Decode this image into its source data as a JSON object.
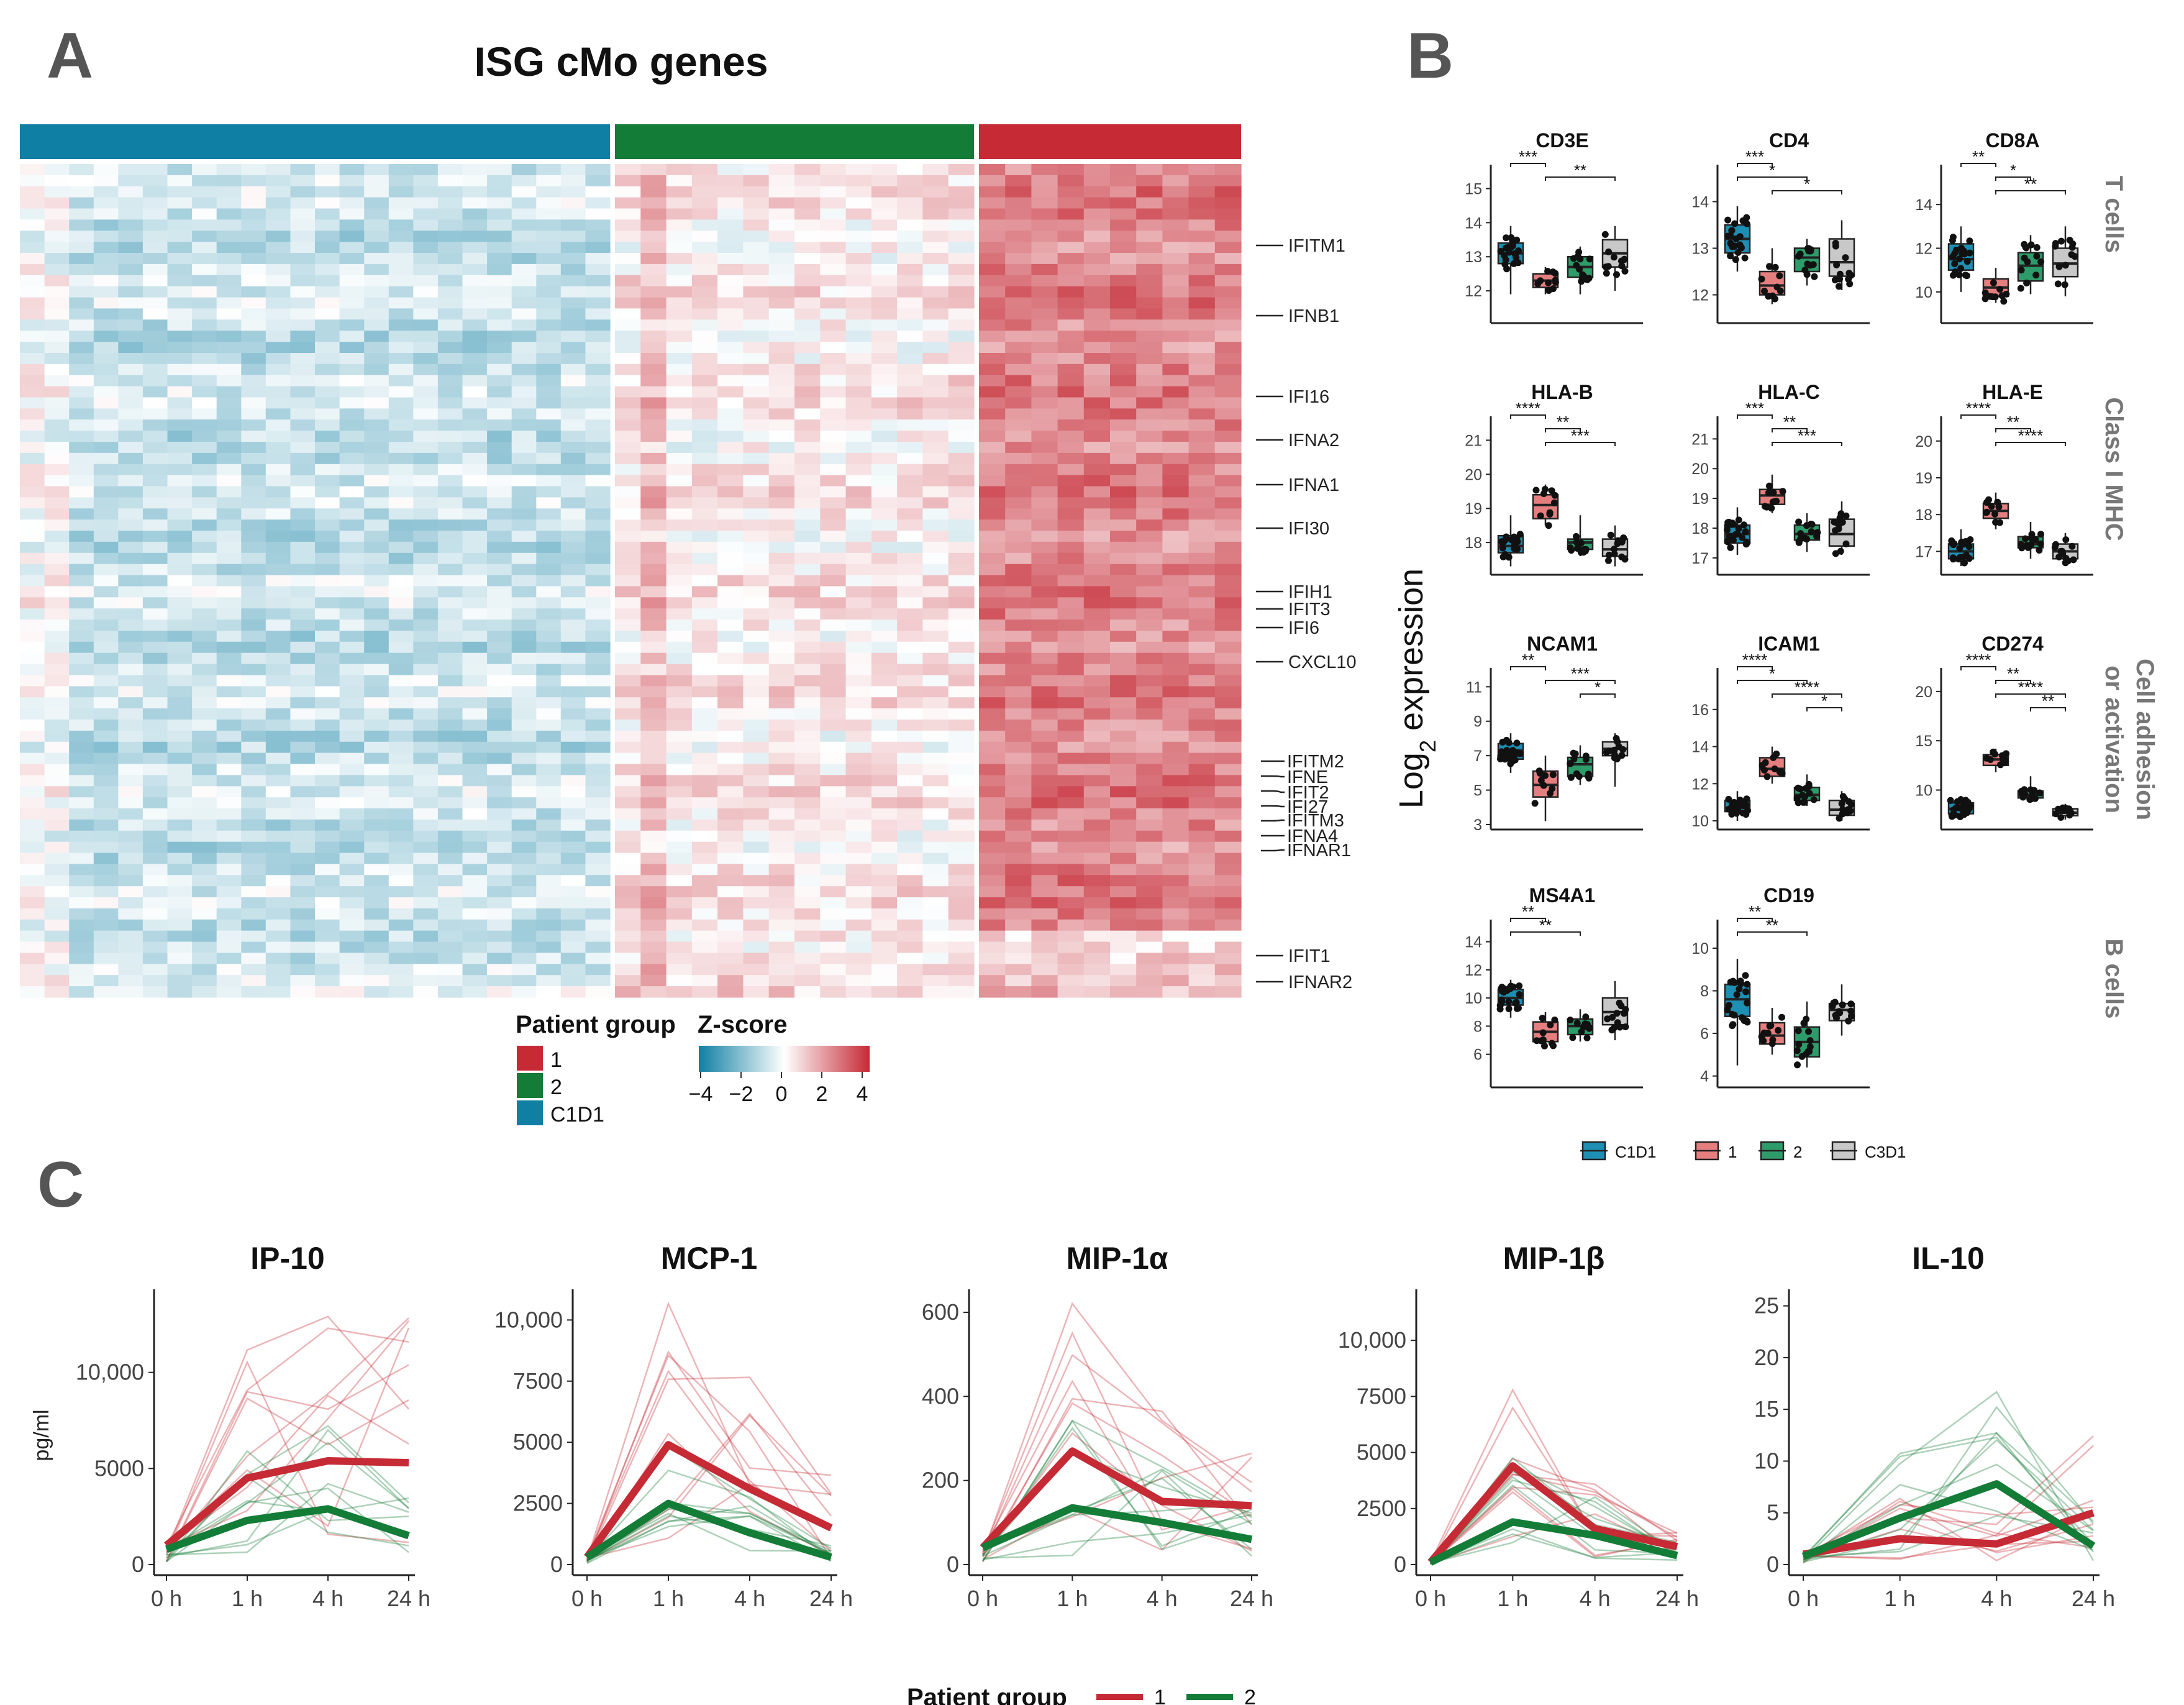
{
  "colors": {
    "c1d1": "#0f7fa3",
    "g1": "#c52a35",
    "g2": "#137c37",
    "c3d1": "#bdbdbd",
    "box_c1d1": "#1e8fb3",
    "box_g1": "#e57f7f",
    "box_g2": "#2e9c6a",
    "box_c3d1": "#c8c8c8"
  },
  "panel_a": {
    "letter": "A",
    "title": "ISG cMo genes",
    "gene_labels": [
      "IFITM1",
      "IFNB1",
      "IFI16",
      "IFNA2",
      "IFNA1",
      "IFI30",
      "IFIH1",
      "IFIT3",
      "IFI6",
      "CXCL10",
      "IFITM2",
      "IFNE",
      "IFIT2",
      "IFI27",
      "IFITM3",
      "IFNA4",
      "IFNAR1",
      "IFIT1",
      "IFNAR2"
    ],
    "legend_group_title": "Patient group",
    "legend_groups": [
      "1",
      "2",
      "C1D1"
    ],
    "legend_z_title": "Z-score",
    "z_ticks": [
      "−4",
      "−2",
      "0",
      "2",
      "4"
    ]
  },
  "panel_b": {
    "letter": "B",
    "y_axis_label": "Log",
    "y_axis_sub": "2",
    "y_axis_label_rest": " expression",
    "row_labels": [
      "T cells",
      "Class I MHC",
      "Cell adhesion",
      "or  activation",
      "B cells"
    ],
    "legend": [
      "C1D1",
      "1",
      "2",
      "C3D1"
    ]
  },
  "chart_data": [
    {
      "type": "box",
      "panel": "B",
      "title": "CD3E",
      "yticks": [
        12,
        13,
        14,
        15
      ],
      "ylim": [
        11.2,
        15.3
      ],
      "groups": [
        {
          "name": "C1D1",
          "q1": 12.8,
          "median": 13.1,
          "q3": 13.4,
          "min": 11.9,
          "max": 13.9
        },
        {
          "name": "1",
          "q1": 12.1,
          "median": 12.3,
          "q3": 12.5,
          "min": 11.9,
          "max": 12.7
        },
        {
          "name": "2",
          "q1": 12.4,
          "median": 12.7,
          "q3": 13.0,
          "min": 11.9,
          "max": 13.3
        },
        {
          "name": "C3D1",
          "q1": 12.7,
          "median": 13.1,
          "q3": 13.5,
          "min": 12.0,
          "max": 13.9
        }
      ],
      "brackets": [
        {
          "from": 0,
          "to": 1,
          "label": "***"
        },
        {
          "from": 1,
          "to": 3,
          "label": "**"
        }
      ]
    },
    {
      "type": "box",
      "panel": "B",
      "title": "CD4",
      "yticks": [
        12,
        13,
        14
      ],
      "ylim": [
        11.5,
        14.5
      ],
      "groups": [
        {
          "name": "C1D1",
          "q1": 12.9,
          "median": 13.2,
          "q3": 13.5,
          "min": 12.5,
          "max": 13.9
        },
        {
          "name": "1",
          "q1": 12.0,
          "median": 12.2,
          "q3": 12.5,
          "min": 11.8,
          "max": 13.0
        },
        {
          "name": "2",
          "q1": 12.5,
          "median": 12.8,
          "q3": 13.0,
          "min": 12.2,
          "max": 13.2
        },
        {
          "name": "C3D1",
          "q1": 12.4,
          "median": 12.7,
          "q3": 13.2,
          "min": 12.1,
          "max": 13.6
        }
      ],
      "brackets": [
        {
          "from": 0,
          "to": 1,
          "label": "***"
        },
        {
          "from": 0,
          "to": 2,
          "label": "*"
        },
        {
          "from": 1,
          "to": 3,
          "label": "*"
        }
      ]
    },
    {
      "type": "box",
      "panel": "B",
      "title": "CD8A",
      "yticks": [
        10,
        12,
        14
      ],
      "ylim": [
        8.8,
        15.2
      ],
      "groups": [
        {
          "name": "C1D1",
          "q1": 11.0,
          "median": 11.5,
          "q3": 12.2,
          "min": 10.0,
          "max": 13.0
        },
        {
          "name": "1",
          "q1": 9.8,
          "median": 10.2,
          "q3": 10.6,
          "min": 9.5,
          "max": 11.1
        },
        {
          "name": "2",
          "q1": 10.5,
          "median": 11.2,
          "q3": 11.8,
          "min": 9.9,
          "max": 12.6
        },
        {
          "name": "C3D1",
          "q1": 10.7,
          "median": 11.3,
          "q3": 12.0,
          "min": 9.8,
          "max": 13.0
        }
      ],
      "brackets": [
        {
          "from": 0,
          "to": 1,
          "label": "**"
        },
        {
          "from": 1,
          "to": 2,
          "label": "*"
        },
        {
          "from": 1,
          "to": 3,
          "label": "**"
        }
      ]
    },
    {
      "type": "box",
      "panel": "B",
      "title": "HLA-B",
      "yticks": [
        18,
        19,
        20,
        21
      ],
      "ylim": [
        17.2,
        21.3
      ],
      "groups": [
        {
          "name": "C1D1",
          "q1": 17.7,
          "median": 17.9,
          "q3": 18.2,
          "min": 17.3,
          "max": 18.8
        },
        {
          "name": "1",
          "q1": 18.7,
          "median": 19.1,
          "q3": 19.4,
          "min": 18.5,
          "max": 19.7
        },
        {
          "name": "2",
          "q1": 17.8,
          "median": 18.0,
          "q3": 18.1,
          "min": 17.6,
          "max": 18.8
        },
        {
          "name": "C3D1",
          "q1": 17.6,
          "median": 17.8,
          "q3": 18.1,
          "min": 17.3,
          "max": 18.5
        }
      ],
      "brackets": [
        {
          "from": 0,
          "to": 1,
          "label": "****"
        },
        {
          "from": 1,
          "to": 2,
          "label": "**"
        },
        {
          "from": 1,
          "to": 3,
          "label": "***"
        }
      ]
    },
    {
      "type": "box",
      "panel": "B",
      "title": "HLA-C",
      "yticks": [
        17,
        18,
        19,
        20,
        21
      ],
      "ylim": [
        16.6,
        21.3
      ],
      "groups": [
        {
          "name": "C1D1",
          "q1": 17.5,
          "median": 17.8,
          "q3": 18.1,
          "min": 17.1,
          "max": 18.7
        },
        {
          "name": "1",
          "q1": 18.8,
          "median": 19.1,
          "q3": 19.3,
          "min": 18.5,
          "max": 19.8
        },
        {
          "name": "2",
          "q1": 17.6,
          "median": 17.8,
          "q3": 18.1,
          "min": 17.2,
          "max": 18.5
        },
        {
          "name": "C3D1",
          "q1": 17.4,
          "median": 17.8,
          "q3": 18.3,
          "min": 17.1,
          "max": 18.9
        }
      ],
      "brackets": [
        {
          "from": 0,
          "to": 1,
          "label": "***"
        },
        {
          "from": 1,
          "to": 2,
          "label": "**"
        },
        {
          "from": 1,
          "to": 3,
          "label": "***"
        }
      ]
    },
    {
      "type": "box",
      "panel": "B",
      "title": "HLA-E",
      "yticks": [
        17,
        18,
        19,
        20
      ],
      "ylim": [
        16.5,
        20.3
      ],
      "groups": [
        {
          "name": "C1D1",
          "q1": 16.8,
          "median": 17.0,
          "q3": 17.2,
          "min": 16.6,
          "max": 17.6
        },
        {
          "name": "1",
          "q1": 17.9,
          "median": 18.1,
          "q3": 18.3,
          "min": 17.6,
          "max": 18.6
        },
        {
          "name": "2",
          "q1": 17.1,
          "median": 17.2,
          "q3": 17.4,
          "min": 16.8,
          "max": 17.8
        },
        {
          "name": "C3D1",
          "q1": 16.8,
          "median": 17.0,
          "q3": 17.2,
          "min": 16.6,
          "max": 17.5
        }
      ],
      "brackets": [
        {
          "from": 0,
          "to": 1,
          "label": "****"
        },
        {
          "from": 1,
          "to": 2,
          "label": "**"
        },
        {
          "from": 1,
          "to": 3,
          "label": "****"
        }
      ]
    },
    {
      "type": "box",
      "panel": "B",
      "title": "NCAM1",
      "yticks": [
        3,
        5,
        7,
        9,
        11
      ],
      "ylim": [
        3,
        11.3
      ],
      "groups": [
        {
          "name": "C1D1",
          "q1": 6.8,
          "median": 7.3,
          "q3": 7.7,
          "min": 6.0,
          "max": 8.3
        },
        {
          "name": "1",
          "q1": 4.6,
          "median": 5.3,
          "q3": 6.1,
          "min": 3.2,
          "max": 7.0
        },
        {
          "name": "2",
          "q1": 5.8,
          "median": 6.5,
          "q3": 6.9,
          "min": 5.3,
          "max": 7.6
        },
        {
          "name": "C3D1",
          "q1": 7.0,
          "median": 7.4,
          "q3": 7.8,
          "min": 5.2,
          "max": 8.3
        }
      ],
      "brackets": [
        {
          "from": 0,
          "to": 1,
          "label": "**"
        },
        {
          "from": 1,
          "to": 3,
          "label": "***"
        },
        {
          "from": 2,
          "to": 3,
          "label": "*"
        }
      ]
    },
    {
      "type": "box",
      "panel": "B",
      "title": "ICAM1",
      "yticks": [
        10,
        12,
        14,
        16
      ],
      "ylim": [
        9.8,
        17.5
      ],
      "groups": [
        {
          "name": "C1D1",
          "q1": 10.5,
          "median": 10.7,
          "q3": 11.1,
          "min": 10.0,
          "max": 11.6
        },
        {
          "name": "1",
          "q1": 12.4,
          "median": 12.8,
          "q3": 13.4,
          "min": 12.0,
          "max": 14.0
        },
        {
          "name": "2",
          "q1": 11.1,
          "median": 11.4,
          "q3": 11.8,
          "min": 10.8,
          "max": 12.5
        },
        {
          "name": "C3D1",
          "q1": 10.3,
          "median": 10.6,
          "q3": 11.1,
          "min": 10.0,
          "max": 11.6
        }
      ],
      "brackets": [
        {
          "from": 0,
          "to": 1,
          "label": "****"
        },
        {
          "from": 0,
          "to": 2,
          "label": "*"
        },
        {
          "from": 1,
          "to": 3,
          "label": "****"
        },
        {
          "from": 2,
          "to": 3,
          "label": "*"
        }
      ]
    },
    {
      "type": "box",
      "panel": "B",
      "title": "CD274",
      "yticks": [
        10,
        15,
        20
      ],
      "ylim": [
        6.5,
        21
      ],
      "groups": [
        {
          "name": "C1D1",
          "q1": 7.6,
          "median": 8.1,
          "q3": 8.7,
          "min": 7.0,
          "max": 9.4
        },
        {
          "name": "1",
          "q1": 12.5,
          "median": 13.1,
          "q3": 13.6,
          "min": 11.8,
          "max": 14.2
        },
        {
          "name": "2",
          "q1": 9.2,
          "median": 9.5,
          "q3": 9.9,
          "min": 8.7,
          "max": 11.4
        },
        {
          "name": "C3D1",
          "q1": 7.4,
          "median": 7.7,
          "q3": 8.1,
          "min": 7.0,
          "max": 8.6
        }
      ],
      "brackets": [
        {
          "from": 0,
          "to": 1,
          "label": "****"
        },
        {
          "from": 1,
          "to": 2,
          "label": "**"
        },
        {
          "from": 1,
          "to": 3,
          "label": "****"
        },
        {
          "from": 2,
          "to": 3,
          "label": "**"
        }
      ]
    },
    {
      "type": "box",
      "panel": "B",
      "title": "MS4A1",
      "yticks": [
        6,
        8,
        10,
        12,
        14
      ],
      "ylim": [
        4,
        14.6
      ],
      "groups": [
        {
          "name": "C1D1",
          "q1": 9.5,
          "median": 10.0,
          "q3": 10.6,
          "min": 8.6,
          "max": 11.3
        },
        {
          "name": "1",
          "q1": 6.9,
          "median": 7.6,
          "q3": 8.3,
          "min": 6.5,
          "max": 9.0
        },
        {
          "name": "2",
          "q1": 7.4,
          "median": 8.0,
          "q3": 8.5,
          "min": 6.9,
          "max": 9.2
        },
        {
          "name": "C3D1",
          "q1": 8.1,
          "median": 9.0,
          "q3": 10.0,
          "min": 7.0,
          "max": 11.2
        }
      ],
      "brackets": [
        {
          "from": 0,
          "to": 1,
          "label": "**"
        },
        {
          "from": 0,
          "to": 2,
          "label": "**"
        }
      ]
    },
    {
      "type": "box",
      "panel": "B",
      "title": "CD19",
      "yticks": [
        4,
        6,
        8,
        10
      ],
      "ylim": [
        3.7,
        10.7
      ],
      "groups": [
        {
          "name": "C1D1",
          "q1": 6.8,
          "median": 7.6,
          "q3": 8.3,
          "min": 4.5,
          "max": 9.5
        },
        {
          "name": "1",
          "q1": 5.5,
          "median": 5.9,
          "q3": 6.5,
          "min": 5.0,
          "max": 7.2
        },
        {
          "name": "2",
          "q1": 4.9,
          "median": 5.6,
          "q3": 6.3,
          "min": 4.4,
          "max": 7.5
        },
        {
          "name": "C3D1",
          "q1": 6.6,
          "median": 7.1,
          "q3": 7.4,
          "min": 5.9,
          "max": 8.3
        }
      ],
      "brackets": [
        {
          "from": 0,
          "to": 1,
          "label": "**"
        },
        {
          "from": 0,
          "to": 2,
          "label": "**"
        }
      ]
    },
    {
      "type": "line",
      "panel": "C",
      "title": "IP-10",
      "x": [
        "0 h",
        "1 h",
        "4 h",
        "24 h"
      ],
      "yticks": [
        0,
        5000,
        10000
      ],
      "ytick_labels": [
        "0",
        "5000",
        "10,000"
      ],
      "ylim": [
        0,
        14000
      ],
      "ylabel": "pg/ml",
      "series": [
        {
          "name": "1",
          "values": [
            1000,
            4500,
            5400,
            5300
          ]
        },
        {
          "name": "2",
          "values": [
            800,
            2300,
            2900,
            1500
          ]
        }
      ]
    },
    {
      "type": "line",
      "panel": "C",
      "title": "MCP-1",
      "x": [
        "0 h",
        "1 h",
        "4 h",
        "24 h"
      ],
      "yticks": [
        0,
        2500,
        5000,
        7500,
        10000
      ],
      "ytick_labels": [
        "0",
        "2500",
        "5000",
        "7500",
        "10,000"
      ],
      "ylim": [
        0,
        11000
      ],
      "ylabel": "",
      "series": [
        {
          "name": "1",
          "values": [
            300,
            4900,
            3100,
            1500
          ]
        },
        {
          "name": "2",
          "values": [
            300,
            2500,
            1300,
            300
          ]
        }
      ]
    },
    {
      "type": "line",
      "panel": "C",
      "title": "MIP-1α",
      "x": [
        "0 h",
        "1 h",
        "4 h",
        "24 h"
      ],
      "yticks": [
        0,
        200,
        400,
        600
      ],
      "ytick_labels": [
        "0",
        "200",
        "400",
        "600"
      ],
      "ylim": [
        0,
        640
      ],
      "ylabel": "",
      "series": [
        {
          "name": "1",
          "values": [
            40,
            270,
            150,
            140
          ]
        },
        {
          "name": "2",
          "values": [
            40,
            135,
            100,
            60
          ]
        }
      ]
    },
    {
      "type": "line",
      "panel": "C",
      "title": "MIP-1β",
      "x": [
        "0 h",
        "1 h",
        "4 h",
        "24 h"
      ],
      "yticks": [
        0,
        2500,
        5000,
        7500,
        10000
      ],
      "ytick_labels": [
        "0",
        "2500",
        "5000",
        "7500",
        "10,000"
      ],
      "ylim": [
        0,
        12000
      ],
      "ylabel": "",
      "series": [
        {
          "name": "1",
          "values": [
            100,
            4400,
            1600,
            800
          ]
        },
        {
          "name": "2",
          "values": [
            100,
            1900,
            1300,
            400
          ]
        }
      ]
    },
    {
      "type": "line",
      "panel": "C",
      "title": "IL-10",
      "x": [
        "0 h",
        "1 h",
        "4 h",
        "24 h"
      ],
      "yticks": [
        0,
        5,
        10,
        15,
        20,
        25
      ],
      "ytick_labels": [
        "0",
        "5",
        "10",
        "15",
        "20",
        "25"
      ],
      "ylim": [
        0,
        26
      ],
      "ylabel": "",
      "series": [
        {
          "name": "1",
          "values": [
            1,
            2.5,
            2,
            5
          ]
        },
        {
          "name": "2",
          "values": [
            0.8,
            4.5,
            7.8,
            1.8
          ]
        }
      ]
    }
  ],
  "panel_c": {
    "letter": "C",
    "legend_title": "Patient group",
    "legend": [
      "1",
      "2"
    ]
  }
}
